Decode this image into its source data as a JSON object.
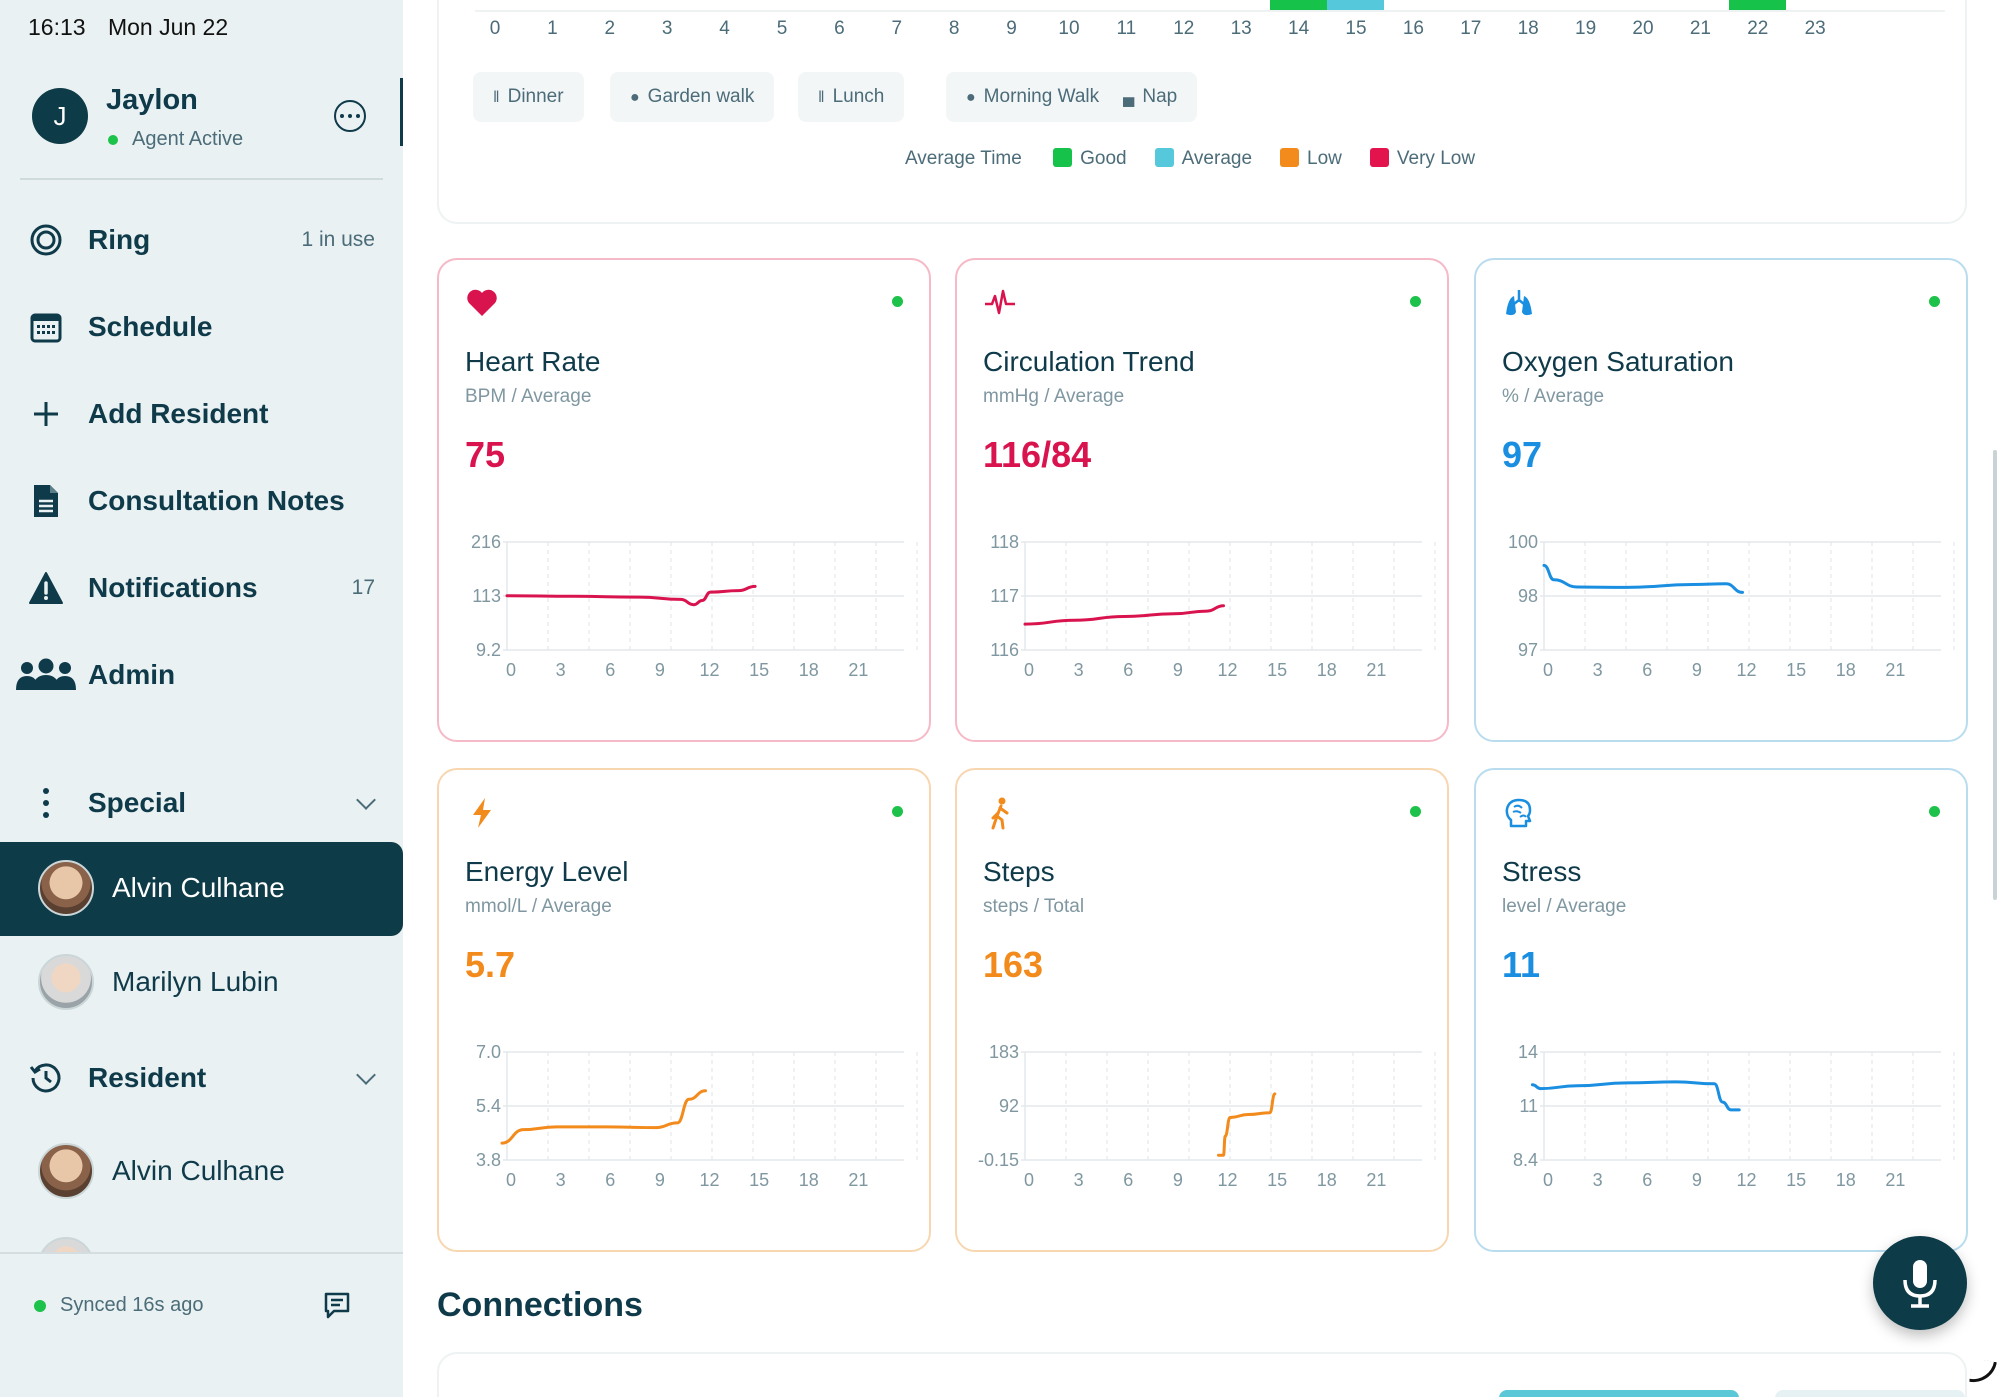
{
  "status_bar": {
    "time": "16:13",
    "date": "Mon Jun 22"
  },
  "user": {
    "initial": "J",
    "name": "Jaylon",
    "status": "Agent Active"
  },
  "nav": {
    "ring": {
      "label": "Ring",
      "meta": "1 in use"
    },
    "schedule": {
      "label": "Schedule"
    },
    "add_resident": {
      "label": "Add Resident"
    },
    "consultation_notes": {
      "label": "Consultation Notes"
    },
    "notifications": {
      "label": "Notifications",
      "meta": "17"
    },
    "admin": {
      "label": "Admin"
    }
  },
  "groups": {
    "special": {
      "label": "Special",
      "residents": [
        "Alvin Culhane",
        "Marilyn Lubin"
      ]
    },
    "resident": {
      "label": "Resident",
      "residents": [
        "Alvin Culhane"
      ]
    }
  },
  "footer": {
    "sync": "Synced 16s ago"
  },
  "timeline": {
    "hours": [
      "0",
      "1",
      "2",
      "3",
      "4",
      "5",
      "6",
      "7",
      "8",
      "9",
      "10",
      "11",
      "12",
      "13",
      "14",
      "15",
      "16",
      "17",
      "18",
      "19",
      "20",
      "21",
      "22",
      "23"
    ],
    "blocks": [
      {
        "hour": 14,
        "level": "Good"
      },
      {
        "hour": 15,
        "level": "Average"
      },
      {
        "hour": 22,
        "level": "Good"
      }
    ],
    "activities": [
      {
        "label": "Dinner",
        "icon": "utensils-icon"
      },
      {
        "label": "Garden walk",
        "icon": "dot-icon"
      },
      {
        "label": "Lunch",
        "icon": "utensils-icon"
      },
      {
        "label": "Morning Walk",
        "icon": "dot-icon"
      },
      {
        "label": "Nap",
        "icon": "bed-icon"
      }
    ],
    "legend": {
      "title": "Average Time",
      "entries": [
        {
          "label": "Good",
          "color": "#16c24a"
        },
        {
          "label": "Average",
          "color": "#56c8dc"
        },
        {
          "label": "Low",
          "color": "#f28a1c"
        },
        {
          "label": "Very Low",
          "color": "#e3134d"
        }
      ]
    }
  },
  "metrics": [
    {
      "id": "heart-rate",
      "icon": "heart-icon",
      "title": "Heart Rate",
      "subtitle": "BPM / Average",
      "value": "75",
      "color": "#d9134d",
      "border": "#f5b9c7",
      "chart_data": {
        "type": "line",
        "x_ticks": [
          "0",
          "3",
          "6",
          "9",
          "12",
          "15",
          "18",
          "21"
        ],
        "y_ticks": [
          "216",
          "113",
          "9.2"
        ],
        "ylim": [
          9.2,
          216
        ],
        "x": [
          0,
          4,
          8,
          10.5,
          11.3,
          11.8,
          12.3,
          14,
          15
        ],
        "y": [
          113,
          112,
          110.5,
          106,
          96,
          104,
          120,
          123,
          131
        ]
      }
    },
    {
      "id": "circulation-trend",
      "icon": "pulse-icon",
      "title": "Circulation Trend",
      "subtitle": "mmHg / Average",
      "value": "116/84",
      "color": "#d9134d",
      "border": "#f5b9c7",
      "chart_data": {
        "type": "line",
        "x_ticks": [
          "0",
          "3",
          "6",
          "9",
          "12",
          "15",
          "18",
          "21"
        ],
        "y_ticks": [
          "118",
          "117",
          "116"
        ],
        "ylim": [
          116,
          118
        ],
        "x": [
          0,
          3,
          6,
          9,
          11,
          12
        ],
        "y": [
          116.48,
          116.55,
          116.62,
          116.67,
          116.72,
          116.82
        ]
      }
    },
    {
      "id": "oxygen-saturation",
      "icon": "lungs-icon",
      "title": "Oxygen Saturation",
      "subtitle": "% / Average",
      "value": "97",
      "color": "#1a8ee0",
      "border": "#b9dcef",
      "chart_data": {
        "type": "line",
        "x_ticks": [
          "0",
          "3",
          "6",
          "9",
          "12",
          "15",
          "18",
          "21"
        ],
        "y_ticks": [
          "100",
          "98",
          "97"
        ],
        "ylim": [
          97,
          100
        ],
        "x": [
          0,
          0.6,
          2,
          5,
          9,
          11,
          12
        ],
        "y": [
          99.35,
          98.95,
          98.75,
          98.74,
          98.82,
          98.84,
          98.6
        ]
      }
    },
    {
      "id": "energy-level",
      "icon": "bolt-icon",
      "title": "Energy Level",
      "subtitle": "mmol/L / Average",
      "value": "5.7",
      "color": "#f28a1c",
      "border": "#f7d6b0",
      "chart_data": {
        "type": "line",
        "x_ticks": [
          "0",
          "3",
          "6",
          "9",
          "12",
          "15",
          "18",
          "21"
        ],
        "y_ticks": [
          "7.0",
          "5.4",
          "3.8"
        ],
        "ylim": [
          3.8,
          7.0
        ],
        "x": [
          -0.3,
          1,
          3,
          6,
          9,
          10.3,
          11,
          12
        ],
        "y": [
          4.3,
          4.7,
          4.78,
          4.78,
          4.76,
          4.9,
          5.6,
          5.85
        ]
      }
    },
    {
      "id": "steps",
      "icon": "walk-icon",
      "title": "Steps",
      "subtitle": "steps / Total",
      "value": "163",
      "color": "#f28a1c",
      "border": "#f7d6b0",
      "chart_data": {
        "type": "line",
        "x_ticks": [
          "0",
          "3",
          "6",
          "9",
          "12",
          "15",
          "18",
          "21"
        ],
        "y_ticks": [
          "183",
          "92",
          "-0.15"
        ],
        "ylim": [
          -0.15,
          183
        ],
        "x": [
          11.7,
          12.0,
          12.1,
          12.4,
          13.5,
          14.8,
          15.1
        ],
        "y": [
          8,
          8,
          40,
          72,
          77,
          80,
          112
        ]
      }
    },
    {
      "id": "stress",
      "icon": "brain-icon",
      "title": "Stress",
      "subtitle": "level / Average",
      "value": "11",
      "color": "#1a8ee0",
      "border": "#b9dcef",
      "chart_data": {
        "type": "line",
        "x_ticks": [
          "0",
          "3",
          "6",
          "9",
          "12",
          "15",
          "18",
          "21"
        ],
        "y_ticks": [
          "14",
          "11",
          "8.4"
        ],
        "ylim": [
          8.4,
          14
        ],
        "x": [
          -0.7,
          -0.2,
          2,
          5,
          8,
          10.3,
          10.8,
          11.3,
          11.8
        ],
        "y": [
          12.3,
          12.1,
          12.25,
          12.4,
          12.45,
          12.35,
          11.4,
          11.0,
          11.0
        ]
      }
    }
  ],
  "connections": {
    "title": "Connections"
  }
}
